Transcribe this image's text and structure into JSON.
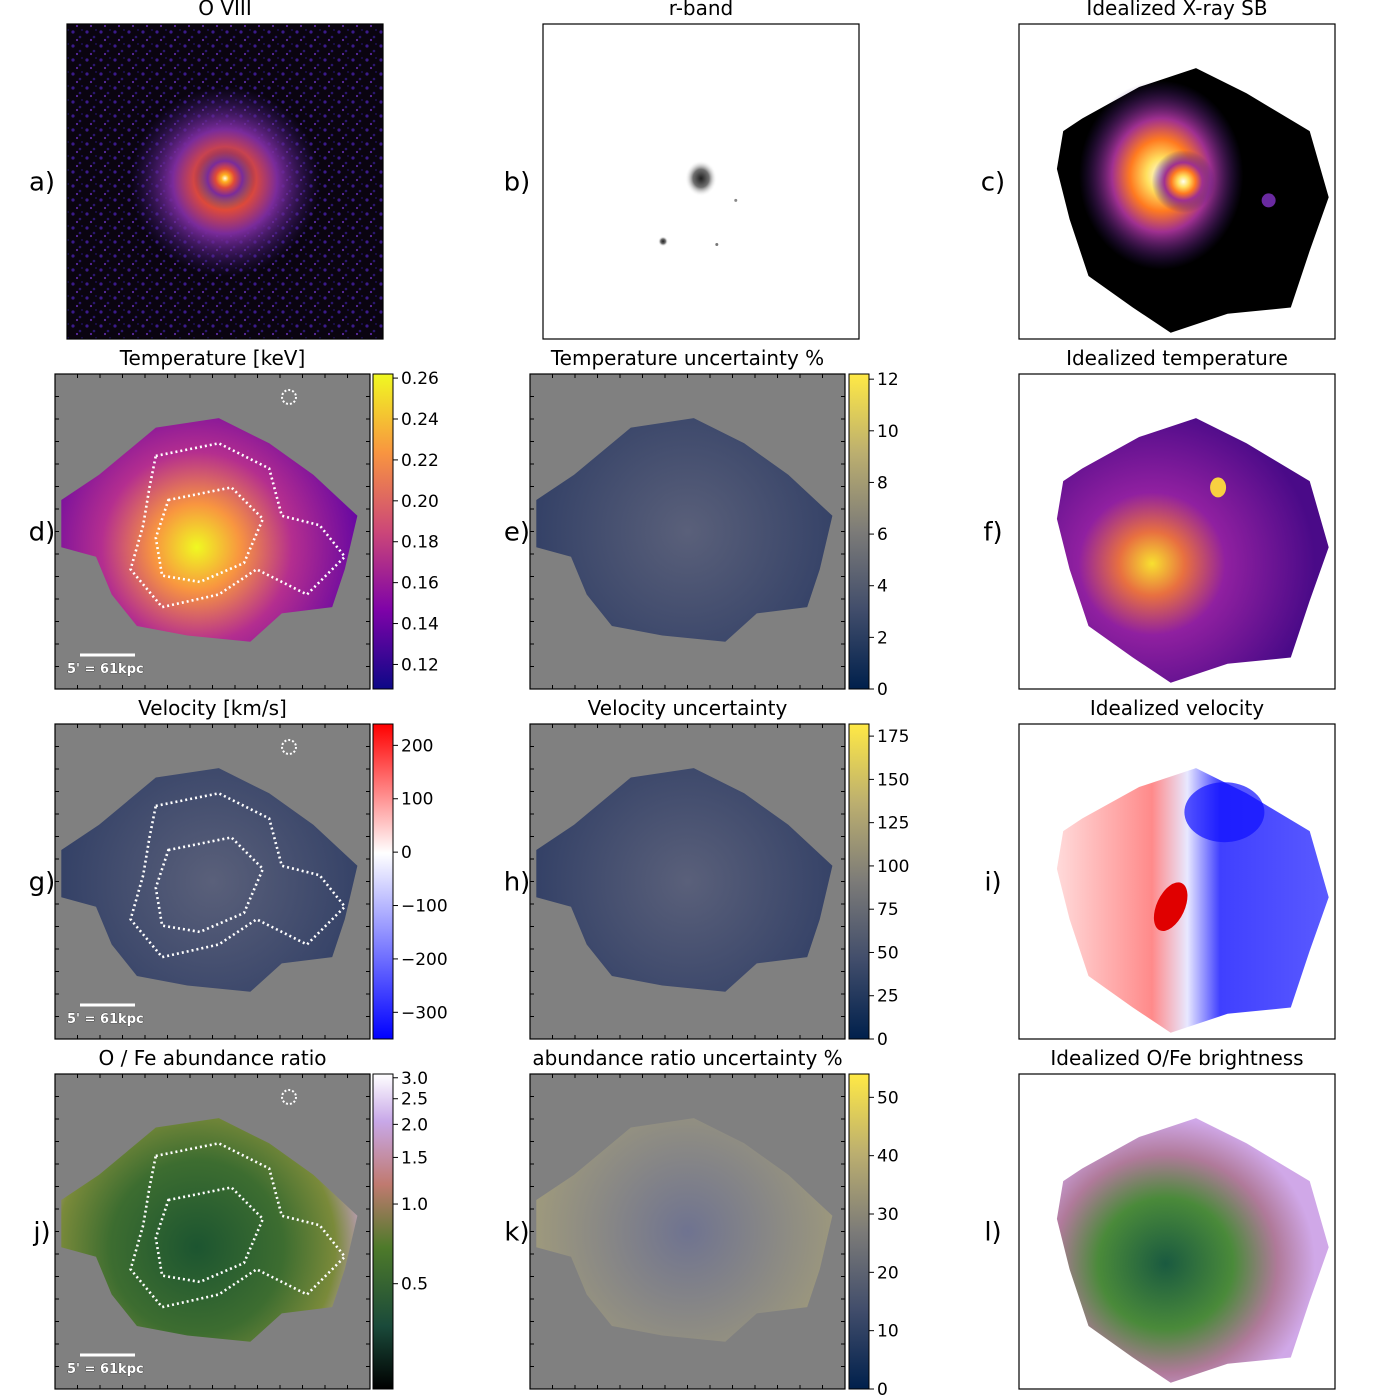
{
  "chart_data": {
    "type": "heatmap",
    "grid": "4x3 panel figure",
    "scalebar_text": "5' = 61kpc",
    "panels": [
      {
        "id": "a",
        "label": "a)",
        "title": "O VIII",
        "kind": "xray",
        "colormap": "plasma-like"
      },
      {
        "id": "b",
        "label": "b)",
        "title": "r-band",
        "kind": "optical",
        "colormap": "gray"
      },
      {
        "id": "c",
        "label": "c)",
        "title": "Idealized X-ray SB",
        "kind": "xray_ideal",
        "colormap": "inferno-like"
      },
      {
        "id": "d",
        "label": "d)",
        "title": "Temperature [keV]",
        "kind": "binned",
        "colormap": "plasma",
        "colorbar": {
          "ticks": [
            0.12,
            0.14,
            0.16,
            0.18,
            0.2,
            0.22,
            0.24,
            0.26
          ],
          "range": [
            0.108,
            0.262
          ]
        },
        "contours": true,
        "scalebar": true,
        "beam": true
      },
      {
        "id": "e",
        "label": "e)",
        "title": "Temperature uncertainty %",
        "kind": "binned",
        "colormap": "cividis",
        "colorbar": {
          "ticks": [
            0,
            2,
            4,
            6,
            8,
            10,
            12
          ],
          "range": [
            0,
            12.2
          ]
        }
      },
      {
        "id": "f",
        "label": "f)",
        "title": "Idealized temperature",
        "kind": "ideal",
        "colormap": "plasma"
      },
      {
        "id": "g",
        "label": "g)",
        "title": "Velocity [km/s]",
        "kind": "binned",
        "colormap": "bwr",
        "colorbar": {
          "ticks": [
            200,
            100,
            0,
            -100,
            -200,
            -300
          ],
          "range": [
            -350,
            240
          ]
        },
        "contours": true,
        "scalebar": true,
        "beam": true
      },
      {
        "id": "h",
        "label": "h)",
        "title": "Velocity uncertainty",
        "kind": "binned",
        "colormap": "cividis",
        "colorbar": {
          "ticks": [
            0,
            25,
            50,
            75,
            100,
            125,
            150,
            175
          ],
          "range": [
            0,
            182
          ]
        }
      },
      {
        "id": "i",
        "label": "i)",
        "title": "Idealized velocity",
        "kind": "ideal",
        "colormap": "bwr"
      },
      {
        "id": "j",
        "label": "j)",
        "title": "O / Fe abundance ratio",
        "kind": "smooth",
        "colormap": "cubehelix",
        "colorbar": {
          "ticks": [
            0.5,
            1.0,
            1.5,
            2.0,
            2.5,
            3.0
          ],
          "range": [
            0.2,
            3.1
          ],
          "scale": "log"
        },
        "contours": true,
        "scalebar": true,
        "beam": true
      },
      {
        "id": "k",
        "label": "k)",
        "title": "abundance ratio uncertainty %",
        "kind": "smooth",
        "colormap": "cividis",
        "colorbar": {
          "ticks": [
            0,
            10,
            20,
            30,
            40,
            50
          ],
          "range": [
            0,
            54
          ]
        }
      },
      {
        "id": "l",
        "label": "l)",
        "title": "Idealized O/Fe brightness",
        "kind": "ideal",
        "colormap": "cubehelix"
      }
    ]
  }
}
